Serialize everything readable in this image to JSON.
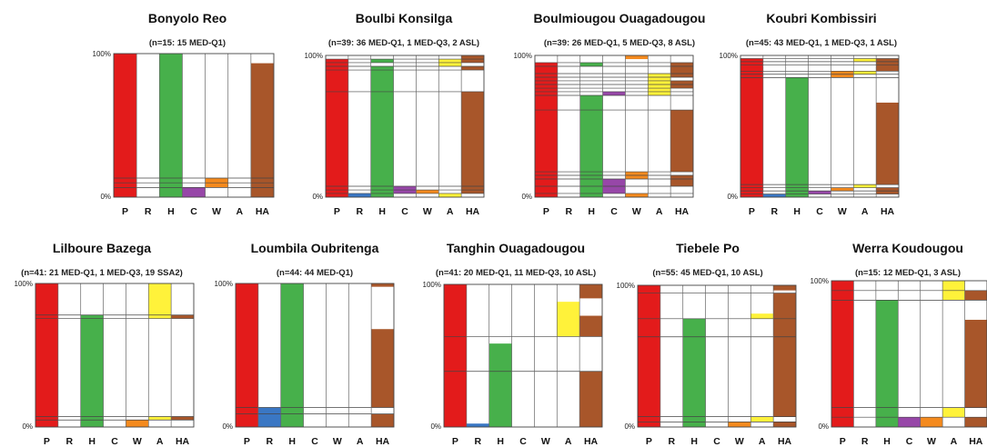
{
  "chart_data": {
    "type": "bar",
    "categories": [
      "P",
      "R",
      "H",
      "C",
      "W",
      "A",
      "HA"
    ],
    "y_tick_labels": [
      "100%",
      "0%"
    ],
    "ylim": [
      0,
      100
    ],
    "colors": {
      "P": "#e31b1b",
      "R": "#3a77c4",
      "H": "#47b04b",
      "C": "#9747a8",
      "W": "#f48a1e",
      "A": "#fff23a",
      "HA": "#a8562a"
    },
    "panels": [
      {
        "title": "Bonyolo Reo",
        "subtitle": "(n=15: 15 MED-Q1)",
        "segments": {
          "P": [
            [
              0,
              100
            ]
          ],
          "R": [],
          "H": [
            [
              0,
              100
            ]
          ],
          "C": [
            [
              0,
              6.7
            ]
          ],
          "W": [
            [
              6.7,
              13.3
            ]
          ],
          "A": [],
          "HA": [
            [
              0,
              93.3
            ]
          ]
        },
        "lines": [
          13.3,
          10,
          6.7
        ]
      },
      {
        "title": "Boulbi Konsilga",
        "subtitle": "(n=39: 36 MED-Q1, 1 MED-Q3, 2 ASL)",
        "segments": {
          "P": [
            [
              0,
              97.4
            ]
          ],
          "R": [
            [
              0,
              2.6
            ]
          ],
          "H": [
            [
              0,
              92.3
            ],
            [
              94.9,
              97.4
            ]
          ],
          "C": [
            [
              2.6,
              7.7
            ]
          ],
          "W": [
            [
              2.6,
              5.1
            ]
          ],
          "A": [
            [
              0,
              2.6
            ],
            [
              92.3,
              97.4
            ]
          ],
          "HA": [
            [
              2.6,
              74.4
            ],
            [
              89.7,
              92.3
            ],
            [
              94.9,
              100
            ]
          ]
        },
        "lines": [
          97.4,
          94.9,
          92.3,
          89.7,
          74.4,
          7.7,
          5.1,
          2.6
        ]
      },
      {
        "title": "Boulmiougou Ouagadougou",
        "subtitle": "(n=39: 26 MED-Q1, 5 MED-Q3, 8 ASL)",
        "segments": {
          "P": [
            [
              0,
              94.9
            ]
          ],
          "R": [],
          "H": [
            [
              0,
              71.8
            ],
            [
              92.3,
              94.9
            ]
          ],
          "C": [
            [
              2.6,
              12.8
            ],
            [
              71.8,
              74.4
            ]
          ],
          "W": [
            [
              0,
              2.6
            ],
            [
              12.8,
              17.9
            ],
            [
              97.4,
              100
            ]
          ],
          "A": [
            [
              71.8,
              87.2
            ]
          ],
          "HA": [
            [
              7.7,
              15.4
            ],
            [
              17.9,
              61.5
            ],
            [
              76.9,
              82.1
            ],
            [
              84.6,
              94.9
            ]
          ]
        },
        "lines": [
          94.9,
          92.3,
          87.2,
          84.6,
          82.1,
          79.5,
          76.9,
          74.4,
          71.8,
          61.5,
          17.9,
          15.4,
          12.8,
          7.7,
          2.6
        ]
      },
      {
        "title": "Koubri Kombissiri",
        "subtitle": "(n=45: 43 MED-Q1, 1 MED-Q3, 1 ASL)",
        "segments": {
          "P": [
            [
              0,
              97.8
            ]
          ],
          "R": [
            [
              0,
              2.2
            ]
          ],
          "H": [
            [
              0,
              84.4
            ]
          ],
          "C": [
            [
              2.2,
              4.4
            ]
          ],
          "W": [
            [
              4.4,
              6.7
            ],
            [
              84.4,
              88.9
            ]
          ],
          "A": [
            [
              6.7,
              8.9
            ],
            [
              86.7,
              88.9
            ],
            [
              95.6,
              97.8
            ]
          ],
          "HA": [
            [
              2.2,
              6.7
            ],
            [
              8.9,
              66.7
            ],
            [
              88.9,
              97.8
            ]
          ]
        },
        "lines": [
          97.8,
          95.6,
          93.3,
          88.9,
          86.7,
          84.4,
          8.9,
          6.7,
          4.4,
          2.2
        ]
      },
      {
        "title": "Lilboure Bazega",
        "subtitle": "(n=41: 21 MED-Q1, 1 MED-Q3, 19 SSA2)",
        "segments": {
          "P": [
            [
              0,
              100
            ]
          ],
          "R": [],
          "H": [
            [
              0,
              78
            ]
          ],
          "C": [],
          "W": [
            [
              0,
              4.9
            ]
          ],
          "A": [
            [
              4.9,
              7.3
            ],
            [
              75.6,
              100
            ]
          ],
          "HA": [
            [
              4.9,
              7.3
            ],
            [
              75.6,
              78
            ]
          ],
          "HA2": []
        },
        "lines": [
          78,
          75.6,
          7.3,
          4.9
        ]
      },
      {
        "title": "Loumbila Oubritenga",
        "subtitle": "(n=44: 44 MED-Q1)",
        "segments": {
          "P": [
            [
              0,
              100
            ]
          ],
          "R": [
            [
              0,
              13.6
            ]
          ],
          "H": [
            [
              0,
              100
            ]
          ],
          "C": [],
          "W": [],
          "A": [],
          "HA": [
            [
              0,
              9.1
            ],
            [
              13.6,
              68.2
            ],
            [
              97.7,
              100
            ]
          ]
        },
        "lines": [
          13.6,
          9.1
        ]
      },
      {
        "title": "Tanghin Ouagadougou",
        "subtitle": "(n=41: 20 MED-Q1, 11 MED-Q3, 10 ASL)",
        "segments": {
          "P": [
            [
              0,
              100
            ]
          ],
          "R": [
            [
              0,
              2.4
            ]
          ],
          "H": [
            [
              0,
              58.5
            ]
          ],
          "C": [],
          "W": [],
          "A": [
            [
              63.4,
              87.8
            ]
          ],
          "HA": [
            [
              0,
              39
            ],
            [
              63.4,
              78
            ],
            [
              90.2,
              100
            ]
          ]
        },
        "lines": [
          63.4,
          39
        ]
      },
      {
        "title": "Tiebele Po",
        "subtitle": "(n=55: 45 MED-Q1, 10 ASL)",
        "segments": {
          "P": [
            [
              0,
              100
            ]
          ],
          "R": [],
          "H": [
            [
              0,
              76.4
            ]
          ],
          "C": [],
          "W": [
            [
              0,
              3.6
            ]
          ],
          "A": [
            [
              3.6,
              7.3
            ],
            [
              76.4,
              80
            ]
          ],
          "HA": [
            [
              0,
              3.6
            ],
            [
              7.3,
              94.5
            ],
            [
              96.4,
              100
            ]
          ]
        },
        "lines": [
          94.5,
          76.4,
          63.6,
          7.3,
          3.6
        ]
      },
      {
        "title": "Werra Koudougou",
        "subtitle": "(n=15: 12 MED-Q1, 3 ASL)",
        "segments": {
          "P": [
            [
              0,
              100
            ]
          ],
          "R": [],
          "H": [
            [
              0,
              86.7
            ]
          ],
          "C": [
            [
              0,
              6.7
            ]
          ],
          "W": [
            [
              0,
              6.7
            ]
          ],
          "A": [
            [
              6.7,
              13.3
            ],
            [
              86.7,
              100
            ]
          ],
          "HA": [
            [
              0,
              6.7
            ],
            [
              13.3,
              73.3
            ],
            [
              86.7,
              93.3
            ]
          ]
        },
        "lines": [
          93.3,
          86.7,
          13.3,
          6.7
        ]
      }
    ]
  }
}
